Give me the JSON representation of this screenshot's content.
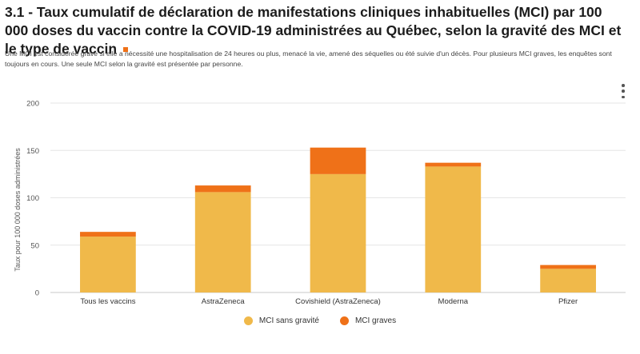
{
  "header": {
    "title": "3.1 - Taux cumulatif de déclaration de manifestations cliniques inhabituelles (MCI) par 100 000 doses du vaccin contre la COVID-19 administrées au Québec, selon la gravité des MCI et le type de vaccin",
    "subtitle": "Une MCI est considérée grave si elle a nécessité une hospitalisation de 24 heures ou plus, menacé la vie, amené des séquelles ou été suivie d'un décès. Pour plusieurs MCI graves, les enquêtes sont toujours en cours. Une seule MCI selon la gravité est présentée par personne."
  },
  "menu_icon": "kebab-menu-icon",
  "chart_data": {
    "type": "bar",
    "stacked": true,
    "categories": [
      "Tous les vaccins",
      "AstraZeneca",
      "Covishield (AstraZeneca)",
      "Moderna",
      "Pfizer"
    ],
    "series": [
      {
        "name": "MCI sans gravité",
        "color": "#f0b94a",
        "values": [
          59,
          106,
          125,
          133,
          25
        ]
      },
      {
        "name": "MCI graves",
        "color": "#ef7118",
        "values": [
          5,
          7,
          28,
          4,
          4
        ]
      }
    ],
    "ylabel": "Taux pour 100 000 doses administrées",
    "xlabel": "",
    "ylim": [
      0,
      200
    ],
    "yticks": [
      0,
      50,
      100,
      150,
      200
    ],
    "grid": true,
    "legend_position": "bottom"
  }
}
